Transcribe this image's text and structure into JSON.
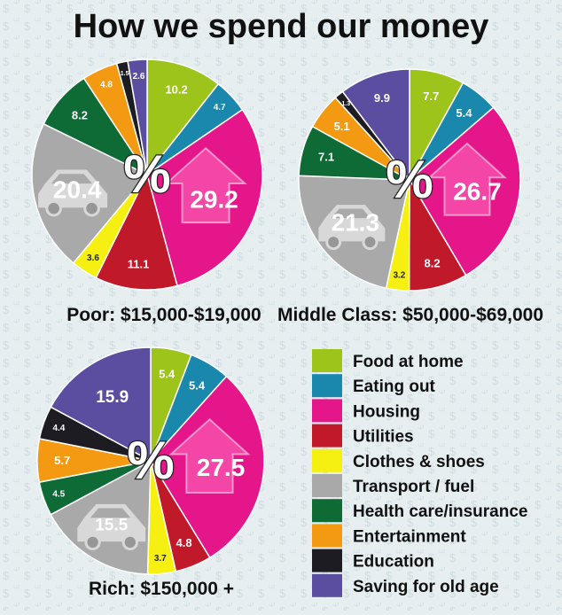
{
  "title": "How we spend our money",
  "categories": [
    {
      "name": "Food at home",
      "color": "#9dc41a"
    },
    {
      "name": "Eating out",
      "color": "#1a87ad"
    },
    {
      "name": "Housing",
      "color": "#e5158a"
    },
    {
      "name": "Utilities",
      "color": "#c01a2a"
    },
    {
      "name": "Clothes & shoes",
      "color": "#f6ef12"
    },
    {
      "name": "Transport / fuel",
      "color": "#a9a9a9"
    },
    {
      "name": "Health care/insurance",
      "color": "#0e6b36"
    },
    {
      "name": "Entertainment",
      "color": "#f39a12"
    },
    {
      "name": "Education",
      "color": "#1c1c22"
    },
    {
      "name": "Saving for old age",
      "color": "#5b4ea0"
    }
  ],
  "center_symbol": "%",
  "chart_data": [
    {
      "type": "pie",
      "caption": "Poor: $15,000-$19,000",
      "labels": [
        "10.2",
        "4.7",
        "29.2",
        "11.1",
        "3.6",
        "20.4",
        "8.2",
        "4.8",
        "1.5",
        "2.6"
      ],
      "values": [
        10.2,
        4.7,
        29.2,
        11.1,
        3.6,
        20.4,
        8.2,
        4.8,
        1.5,
        2.6
      ]
    },
    {
      "type": "pie",
      "caption": "Middle Class: $50,000-$69,000",
      "labels": [
        "7.7",
        "5.4",
        "26.7",
        "8.2",
        "3.2",
        "21.3",
        "7.1",
        "5.1",
        "1.3",
        "9.9"
      ],
      "values": [
        7.7,
        5.4,
        26.7,
        8.2,
        3.2,
        21.3,
        7.1,
        5.1,
        1.3,
        9.9
      ]
    },
    {
      "type": "pie",
      "caption": "Rich: $150,000 +",
      "labels": [
        "5.4",
        "5.4",
        "27.5",
        "4.8",
        "3.7",
        "15.5",
        "4.5",
        "5.7",
        "4.4",
        "15.9"
      ],
      "values": [
        5.4,
        5.4,
        27.5,
        4.8,
        3.7,
        15.5,
        4.5,
        5.7,
        4.4,
        15.9
      ]
    }
  ]
}
